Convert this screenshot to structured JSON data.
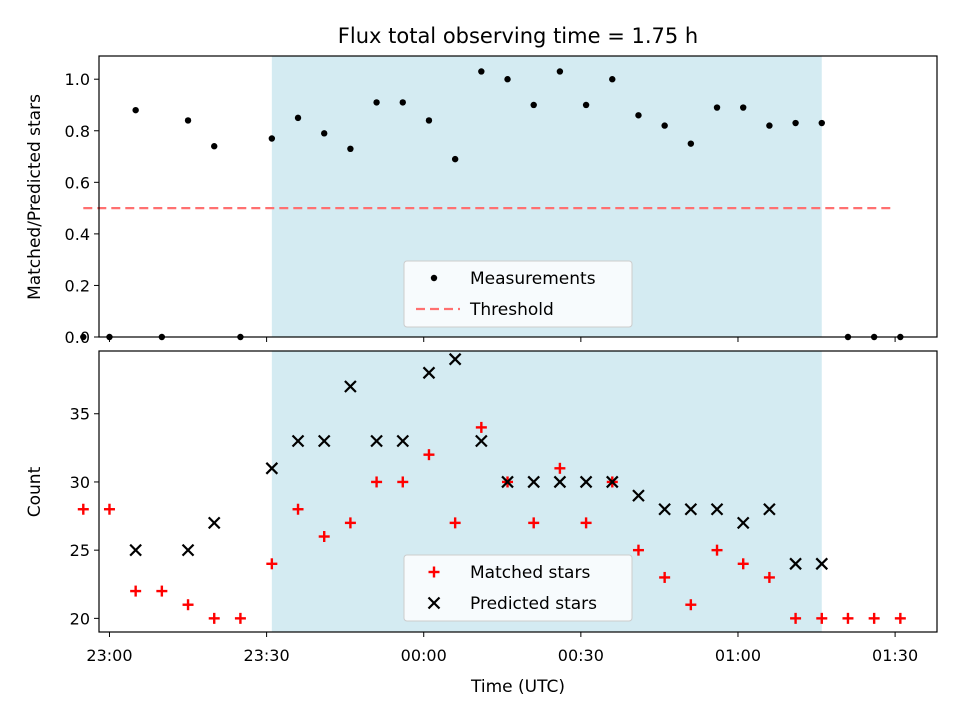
{
  "chart_data": [
    {
      "type": "scatter",
      "title": "Flux total observing time = 1.75 h",
      "ylabel": "Matched/Predicted stars",
      "xlabel": "",
      "ylim": [
        0,
        1.09
      ],
      "yticks": [
        "0.0",
        "0.2",
        "0.4",
        "0.6",
        "0.8",
        "1.0"
      ],
      "shaded_span": {
        "start": "23:31",
        "end": "01:16",
        "color": "#add8e6"
      },
      "series": [
        {
          "name": "Measurements",
          "marker": "dot",
          "color": "#000000",
          "x": [
            "22:55",
            "23:00",
            "23:05",
            "23:10",
            "23:15",
            "23:20",
            "23:25",
            "23:31",
            "23:36",
            "23:41",
            "23:46",
            "23:51",
            "23:56",
            "00:01",
            "00:06",
            "00:11",
            "00:16",
            "00:21",
            "00:26",
            "00:31",
            "00:36",
            "00:41",
            "00:46",
            "00:51",
            "00:56",
            "01:01",
            "01:06",
            "01:11",
            "01:16",
            "01:21",
            "01:26",
            "01:31"
          ],
          "y": [
            0,
            0,
            0.88,
            0,
            0.84,
            0.74,
            0,
            0.77,
            0.85,
            0.79,
            0.73,
            0.91,
            0.91,
            0.84,
            0.69,
            1.03,
            1.0,
            0.9,
            1.03,
            0.9,
            1.0,
            0.86,
            0.82,
            0.75,
            0.89,
            0.89,
            0.82,
            0.83,
            0.83,
            0,
            0,
            0
          ]
        },
        {
          "name": "Threshold",
          "style": "dashed",
          "color": "#ff7070",
          "x": [
            "22:55",
            "01:30"
          ],
          "y": [
            0.5,
            0.5
          ]
        }
      ],
      "legend": {
        "placement": "lower-center",
        "items": [
          "Measurements",
          "Threshold"
        ]
      }
    },
    {
      "type": "scatter",
      "title": "",
      "ylabel": "Count",
      "xlabel": "Time (UTC)",
      "ylim": [
        19,
        39.6
      ],
      "yticks": [
        "20",
        "25",
        "30",
        "35"
      ],
      "xticks": [
        "23:00",
        "23:30",
        "00:00",
        "00:30",
        "01:00",
        "01:30"
      ],
      "shaded_span": {
        "start": "23:31",
        "end": "01:16",
        "color": "#add8e6"
      },
      "series": [
        {
          "name": "Matched stars",
          "marker": "plus",
          "color": "#ff0000",
          "x": [
            "22:55",
            "23:00",
            "23:05",
            "23:10",
            "23:15",
            "23:20",
            "23:25",
            "23:31",
            "23:36",
            "23:41",
            "23:46",
            "23:51",
            "23:56",
            "00:01",
            "00:06",
            "00:11",
            "00:16",
            "00:21",
            "00:26",
            "00:31",
            "00:36",
            "00:41",
            "00:46",
            "00:51",
            "00:56",
            "01:01",
            "01:06",
            "01:11",
            "01:16",
            "01:21",
            "01:26",
            "01:31"
          ],
          "y": [
            28,
            28,
            22,
            22,
            21,
            20,
            20,
            24,
            28,
            26,
            27,
            30,
            30,
            32,
            27,
            34,
            30,
            27,
            31,
            27,
            30,
            25,
            23,
            21,
            25,
            24,
            23,
            20,
            20,
            20,
            20,
            20
          ]
        },
        {
          "name": "Predicted stars",
          "marker": "x",
          "color": "#000000",
          "x": [
            "23:05",
            "23:15",
            "23:20",
            "23:31",
            "23:36",
            "23:41",
            "23:46",
            "23:51",
            "23:56",
            "00:01",
            "00:06",
            "00:11",
            "00:16",
            "00:21",
            "00:26",
            "00:31",
            "00:36",
            "00:41",
            "00:46",
            "00:51",
            "00:56",
            "01:01",
            "01:06",
            "01:11",
            "01:16"
          ],
          "y": [
            25,
            25,
            27,
            31,
            33,
            33,
            37,
            33,
            33,
            38,
            39,
            33,
            30,
            30,
            30,
            30,
            30,
            29,
            28,
            28,
            28,
            27,
            28,
            24,
            24
          ]
        }
      ],
      "legend": {
        "placement": "lower-center",
        "items": [
          "Matched stars",
          "Predicted stars"
        ]
      }
    }
  ]
}
